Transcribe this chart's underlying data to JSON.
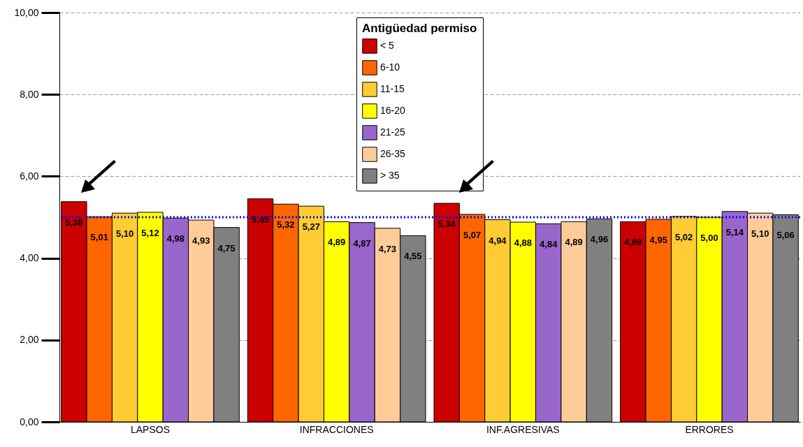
{
  "chart_data": {
    "type": "bar",
    "categories": [
      "LAPSOS",
      "INFRACCIONES",
      "INF.AGRESIVAS",
      "ERRORES"
    ],
    "legend_title": "Antigüedad permiso",
    "legend": "top",
    "grid": "y",
    "ylim": [
      0,
      10
    ],
    "yticks": [
      {
        "value": 0,
        "label": "0,00"
      },
      {
        "value": 2,
        "label": "2,00"
      },
      {
        "value": 4,
        "label": "4,00"
      },
      {
        "value": 6,
        "label": "6,00"
      },
      {
        "value": 8,
        "label": "8,00"
      },
      {
        "value": 10,
        "label": "10,00"
      }
    ],
    "ref_lines": [
      {
        "axis": "y",
        "value": 5,
        "color": "#0000ee",
        "line_style": "dotted"
      }
    ],
    "series": [
      {
        "name": "< 5",
        "color": "#cc0000",
        "values": [
          5.38,
          5.45,
          5.34,
          4.89
        ],
        "value_labels": [
          "5,38",
          "5,45",
          "5,34",
          "4,89"
        ]
      },
      {
        "name": "6-10",
        "color": "#ff6600",
        "values": [
          5.01,
          5.32,
          5.07,
          4.95
        ],
        "value_labels": [
          "5,01",
          "5,32",
          "5,07",
          "4,95"
        ]
      },
      {
        "name": "11-15",
        "color": "#ffcc33",
        "values": [
          5.1,
          5.27,
          4.94,
          5.02
        ],
        "value_labels": [
          "5,10",
          "5,27",
          "4,94",
          "5,02"
        ]
      },
      {
        "name": "16-20",
        "color": "#ffff00",
        "values": [
          5.12,
          4.89,
          4.88,
          5.0
        ],
        "value_labels": [
          "5,12",
          "4,89",
          "4,88",
          "5,00"
        ]
      },
      {
        "name": "21-25",
        "color": "#9966cc",
        "values": [
          4.98,
          4.87,
          4.84,
          5.14
        ],
        "value_labels": [
          "4,98",
          "4,87",
          "4,84",
          "5,14"
        ]
      },
      {
        "name": "26-35",
        "color": "#ffcc99",
        "values": [
          4.93,
          4.73,
          4.89,
          5.1
        ],
        "value_labels": [
          "4,93",
          "4,73",
          "4,89",
          "5,10"
        ]
      },
      {
        "name": "> 35",
        "color": "#808080",
        "values": [
          4.75,
          4.55,
          4.96,
          5.06
        ],
        "value_labels": [
          "4,75",
          "4,55",
          "4,96",
          "5,06"
        ]
      }
    ]
  }
}
